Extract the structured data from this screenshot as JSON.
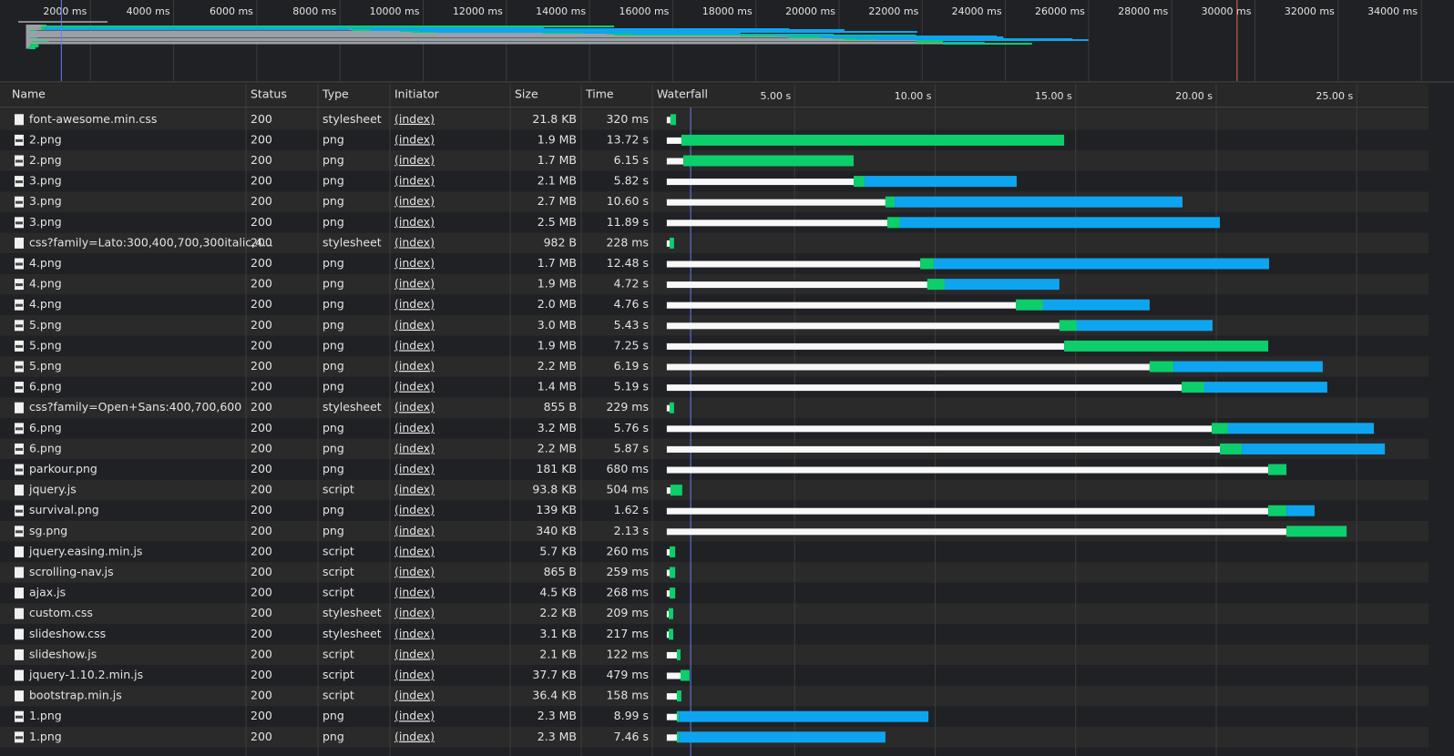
{
  "overview_ticks": [
    {
      "value": 2000,
      "label": "2000 ms"
    },
    {
      "value": 4000,
      "label": "4000 ms"
    },
    {
      "value": 6000,
      "label": "6000 ms"
    },
    {
      "value": 8000,
      "label": "8000 ms"
    },
    {
      "value": 10000,
      "label": "10000 ms"
    },
    {
      "value": 12000,
      "label": "12000 ms"
    },
    {
      "value": 14000,
      "label": "14000 ms"
    },
    {
      "value": 16000,
      "label": "16000 ms"
    },
    {
      "value": 18000,
      "label": "18000 ms"
    },
    {
      "value": 20000,
      "label": "20000 ms"
    },
    {
      "value": 22000,
      "label": "22000 ms"
    },
    {
      "value": 24000,
      "label": "24000 ms"
    },
    {
      "value": 26000,
      "label": "26000 ms"
    },
    {
      "value": 28000,
      "label": "28000 ms"
    },
    {
      "value": 30000,
      "label": "30000 ms"
    },
    {
      "value": 32000,
      "label": "32000 ms"
    },
    {
      "value": 34000,
      "label": "34000 ms"
    }
  ],
  "columns": [
    "Name",
    "Status",
    "Type",
    "Initiator",
    "Size",
    "Time",
    "Waterfall"
  ],
  "waterfall_ticks": [
    {
      "value": 5,
      "label": "5.00 s"
    },
    {
      "value": 10,
      "label": "10.00 s"
    },
    {
      "value": 15,
      "label": "15.00 s"
    },
    {
      "value": 20,
      "label": "20.00 s"
    },
    {
      "value": 25,
      "label": "25.00 s"
    }
  ],
  "markers": {
    "dom_content_loaded": 1.3,
    "load": 29.57
  },
  "rows": [
    {
      "name": "font-awesome.min.css",
      "status": 200,
      "type": "stylesheet",
      "initiator": "(index)",
      "size": "21.8 KB",
      "time": "320 ms",
      "waterfall": [
        0.45,
        0.58,
        0.78,
        0.78
      ]
    },
    {
      "name": "2.png",
      "status": 200,
      "type": "png",
      "initiator": "(index)",
      "size": "1.9 MB",
      "time": "13.72 s",
      "waterfall": [
        0.45,
        0.97,
        14.59,
        14.59
      ]
    },
    {
      "name": "2.png",
      "status": 200,
      "type": "png",
      "initiator": "(index)",
      "size": "1.7 MB",
      "time": "6.15 s",
      "waterfall": [
        0.45,
        1.04,
        7.1,
        7.1
      ]
    },
    {
      "name": "3.png",
      "status": 200,
      "type": "png",
      "initiator": "(index)",
      "size": "2.1 MB",
      "time": "5.82 s",
      "waterfall": [
        0.45,
        7.1,
        7.49,
        12.9
      ]
    },
    {
      "name": "3.png",
      "status": 200,
      "type": "png",
      "initiator": "(index)",
      "size": "2.7 MB",
      "time": "10.60 s",
      "waterfall": [
        0.45,
        8.23,
        8.56,
        18.8
      ]
    },
    {
      "name": "3.png",
      "status": 200,
      "type": "png",
      "initiator": "(index)",
      "size": "2.5 MB",
      "time": "11.89 s",
      "waterfall": [
        0.45,
        8.3,
        8.75,
        20.13
      ]
    },
    {
      "name": "css?family=Lato:300,400,700,300italic,4...",
      "status": 200,
      "type": "stylesheet",
      "initiator": "(index)",
      "size": "982 B",
      "time": "228 ms",
      "waterfall": [
        0.45,
        0.55,
        0.71,
        0.71
      ]
    },
    {
      "name": "4.png",
      "status": 200,
      "type": "png",
      "initiator": "(index)",
      "size": "1.7 MB",
      "time": "12.48 s",
      "waterfall": [
        0.45,
        9.47,
        9.95,
        21.88
      ]
    },
    {
      "name": "4.png",
      "status": 200,
      "type": "png",
      "initiator": "(index)",
      "size": "1.9 MB",
      "time": "4.72 s",
      "waterfall": [
        0.45,
        9.72,
        10.34,
        14.42
      ]
    },
    {
      "name": "4.png",
      "status": 200,
      "type": "png",
      "initiator": "(index)",
      "size": "2.0 MB",
      "time": "4.76 s",
      "waterfall": [
        0.45,
        12.87,
        13.84,
        17.63
      ]
    },
    {
      "name": "5.png",
      "status": 200,
      "type": "png",
      "initiator": "(index)",
      "size": "3.0 MB",
      "time": "5.43 s",
      "waterfall": [
        0.45,
        14.42,
        15.04,
        19.87
      ]
    },
    {
      "name": "5.png",
      "status": 200,
      "type": "png",
      "initiator": "(index)",
      "size": "1.9 MB",
      "time": "7.25 s",
      "waterfall": [
        0.45,
        14.59,
        21.85,
        21.85
      ]
    },
    {
      "name": "5.png",
      "status": 200,
      "type": "png",
      "initiator": "(index)",
      "size": "2.2 MB",
      "time": "6.19 s",
      "waterfall": [
        0.45,
        17.63,
        18.48,
        23.79
      ]
    },
    {
      "name": "6.png",
      "status": 200,
      "type": "png",
      "initiator": "(index)",
      "size": "1.4 MB",
      "time": "5.19 s",
      "waterfall": [
        0.45,
        18.77,
        19.58,
        23.95
      ]
    },
    {
      "name": "css?family=Open+Sans:400,700,600",
      "status": 200,
      "type": "stylesheet",
      "initiator": "(index)",
      "size": "855 B",
      "time": "229 ms",
      "waterfall": [
        0.45,
        0.55,
        0.71,
        0.71
      ]
    },
    {
      "name": "6.png",
      "status": 200,
      "type": "png",
      "initiator": "(index)",
      "size": "3.2 MB",
      "time": "5.76 s",
      "waterfall": [
        0.45,
        19.84,
        20.42,
        25.61
      ]
    },
    {
      "name": "6.png",
      "status": 200,
      "type": "png",
      "initiator": "(index)",
      "size": "2.2 MB",
      "time": "5.87 s",
      "waterfall": [
        0.45,
        20.13,
        20.91,
        26.0
      ]
    },
    {
      "name": "parkour.png",
      "status": 200,
      "type": "png",
      "initiator": "(index)",
      "size": "181 KB",
      "time": "680 ms",
      "waterfall": [
        0.45,
        21.85,
        22.5,
        22.5
      ]
    },
    {
      "name": "jquery.js",
      "status": 200,
      "type": "script",
      "initiator": "(index)",
      "size": "93.8 KB",
      "time": "504 ms",
      "waterfall": [
        0.45,
        0.58,
        1.0,
        1.0
      ]
    },
    {
      "name": "survival.png",
      "status": 200,
      "type": "png",
      "initiator": "(index)",
      "size": "139 KB",
      "time": "1.62 s",
      "waterfall": [
        0.45,
        21.85,
        22.5,
        23.5
      ]
    },
    {
      "name": "sg.png",
      "status": 200,
      "type": "png",
      "initiator": "(index)",
      "size": "340 KB",
      "time": "2.13 s",
      "waterfall": [
        0.45,
        22.5,
        24.64,
        24.64
      ]
    },
    {
      "name": "jquery.easing.min.js",
      "status": 200,
      "type": "script",
      "initiator": "(index)",
      "size": "5.7 KB",
      "time": "260 ms",
      "waterfall": [
        0.45,
        0.55,
        0.75,
        0.75
      ]
    },
    {
      "name": "scrolling-nav.js",
      "status": 200,
      "type": "script",
      "initiator": "(index)",
      "size": "865 B",
      "time": "259 ms",
      "waterfall": [
        0.45,
        0.55,
        0.75,
        0.75
      ]
    },
    {
      "name": "ajax.js",
      "status": 200,
      "type": "script",
      "initiator": "(index)",
      "size": "4.5 KB",
      "time": "268 ms",
      "waterfall": [
        0.45,
        0.55,
        0.75,
        0.75
      ]
    },
    {
      "name": "custom.css",
      "status": 200,
      "type": "stylesheet",
      "initiator": "(index)",
      "size": "2.2 KB",
      "time": "209 ms",
      "waterfall": [
        0.45,
        0.52,
        0.68,
        0.68
      ]
    },
    {
      "name": "slideshow.css",
      "status": 200,
      "type": "stylesheet",
      "initiator": "(index)",
      "size": "3.1 KB",
      "time": "217 ms",
      "waterfall": [
        0.45,
        0.52,
        0.68,
        0.68
      ]
    },
    {
      "name": "slideshow.js",
      "status": 200,
      "type": "script",
      "initiator": "(index)",
      "size": "2.1 KB",
      "time": "122 ms",
      "waterfall": [
        0.45,
        0.81,
        0.94,
        0.94
      ]
    },
    {
      "name": "jquery-1.10.2.min.js",
      "status": 200,
      "type": "script",
      "initiator": "(index)",
      "size": "37.7 KB",
      "time": "479 ms",
      "waterfall": [
        0.45,
        0.94,
        1.26,
        1.26
      ]
    },
    {
      "name": "bootstrap.min.js",
      "status": 200,
      "type": "script",
      "initiator": "(index)",
      "size": "36.4 KB",
      "time": "158 ms",
      "waterfall": [
        0.45,
        0.81,
        0.97,
        0.97
      ]
    },
    {
      "name": "1.png",
      "status": 200,
      "type": "png",
      "initiator": "(index)",
      "size": "2.3 MB",
      "time": "8.99 s",
      "waterfall": [
        0.45,
        0.81,
        0.88,
        9.76
      ]
    },
    {
      "name": "1.png",
      "status": 200,
      "type": "png",
      "initiator": "(index)",
      "size": "2.3 MB",
      "time": "7.46 s",
      "waterfall": [
        0.45,
        0.81,
        0.88,
        8.23
      ]
    }
  ]
}
